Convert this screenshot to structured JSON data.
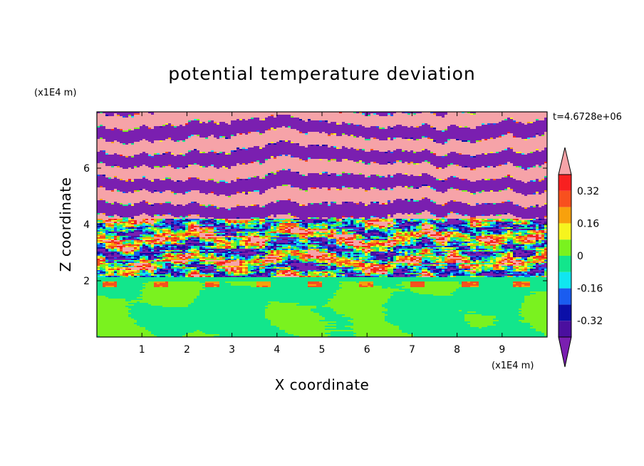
{
  "chart_data": {
    "type": "heatmap",
    "title": "potential temperature deviation",
    "xlabel": "X coordinate",
    "ylabel": "Z coordinate",
    "x_unit": "(x1E4 m)",
    "y_unit": "(x1E4 m)",
    "time_label": "t=4.6728e+06",
    "xlim": [
      0,
      10
    ],
    "ylim": [
      0,
      8
    ],
    "x_ticks": [
      1,
      2,
      3,
      4,
      5,
      6,
      7,
      8,
      9
    ],
    "y_ticks": [
      2,
      4,
      6
    ],
    "colorbar": {
      "levels": [
        -0.4,
        -0.32,
        -0.24,
        -0.16,
        -0.08,
        0,
        0.08,
        0.16,
        0.24,
        0.32,
        0.4
      ],
      "tick_values": [
        -0.32,
        -0.16,
        0,
        0.16,
        0.32
      ],
      "tick_labels": [
        "-0.32",
        "-0.16",
        "0",
        "0.16",
        "0.32"
      ],
      "colors": [
        "#7a1fb0",
        "#4b0f9f",
        "#0b0fa8",
        "#1a5cf0",
        "#10e6f0",
        "#12e68c",
        "#7af21f",
        "#f6f41e",
        "#f8a10c",
        "#f8501e",
        "#f82020",
        "#f6a3a8"
      ],
      "extend": "both"
    },
    "field_description": [
      {
        "z_range": [
          0,
          2
        ],
        "pattern": "near-zero deviation: green (0 to 0.08) with bands of 0 to -0.08"
      },
      {
        "z_range": [
          2,
          4
        ],
        "pattern": "turbulent mixing layer with full range of values, -0.4 to 0.4"
      },
      {
        "z_range": [
          4,
          8
        ],
        "pattern": "alternating horizontal layers above 0.4 and below -0.4"
      }
    ]
  }
}
